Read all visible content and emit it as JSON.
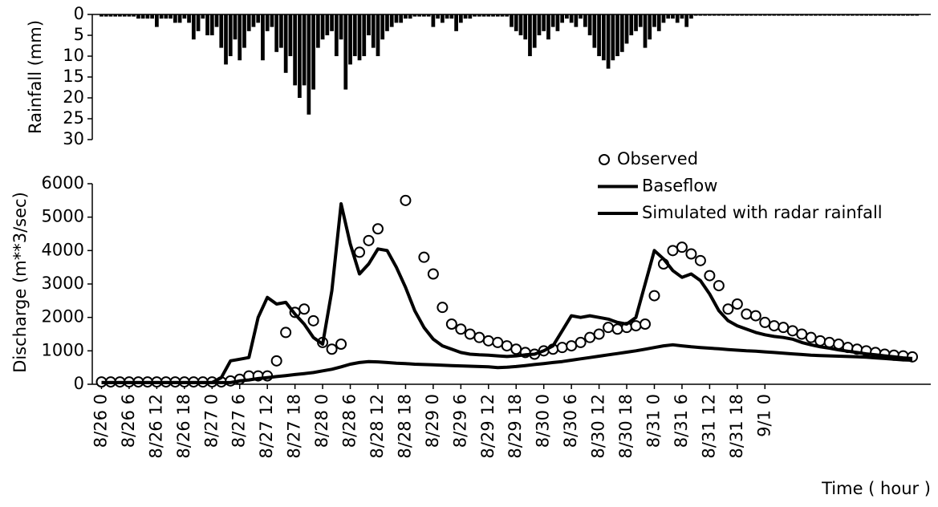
{
  "chart_data": [
    {
      "type": "bar",
      "ylabel": "Rainfall (mm)",
      "color": "#000000",
      "inverted": true,
      "xlim": [
        -2,
        180
      ],
      "ylim": [
        0,
        30
      ],
      "yticks": [
        0,
        5,
        10,
        15,
        20,
        25,
        30
      ],
      "x": [
        0,
        1,
        2,
        3,
        4,
        5,
        6,
        7,
        8,
        9,
        10,
        11,
        12,
        13,
        14,
        15,
        16,
        17,
        18,
        19,
        20,
        21,
        22,
        23,
        24,
        25,
        26,
        27,
        28,
        29,
        30,
        31,
        32,
        33,
        34,
        35,
        36,
        37,
        38,
        39,
        40,
        41,
        42,
        43,
        44,
        45,
        46,
        47,
        48,
        49,
        50,
        51,
        52,
        53,
        54,
        55,
        56,
        57,
        58,
        59,
        60,
        61,
        62,
        63,
        64,
        65,
        66,
        67,
        68,
        69,
        70,
        71,
        72,
        73,
        74,
        75,
        76,
        77,
        78,
        79,
        80,
        81,
        82,
        83,
        84,
        85,
        86,
        87,
        88,
        89,
        90,
        91,
        92,
        93,
        94,
        95,
        96,
        97,
        98,
        99,
        100,
        101,
        102,
        103,
        104,
        105,
        106,
        107,
        108,
        109,
        110,
        111,
        112,
        113,
        114,
        115,
        116,
        117,
        118,
        119,
        120,
        121,
        122,
        123,
        124,
        125,
        126,
        127,
        128,
        129,
        130,
        131,
        132,
        133,
        134,
        135,
        136,
        137,
        138,
        139,
        140,
        141,
        142,
        143,
        144,
        145,
        146,
        147,
        148,
        149,
        150,
        151,
        152,
        153,
        154,
        155,
        156,
        157,
        158,
        159,
        160,
        161,
        162,
        163,
        164,
        165,
        166,
        167,
        168,
        169,
        170,
        171,
        172,
        173,
        174,
        175,
        176,
        177
      ],
      "values": [
        0.5,
        0.5,
        0.5,
        0.5,
        0.5,
        0.5,
        0.5,
        0.5,
        1,
        1,
        1,
        1,
        3,
        1,
        1,
        1,
        2,
        2,
        1,
        2,
        6,
        4,
        1,
        5,
        5,
        3,
        8,
        12,
        10,
        6,
        11,
        8,
        4,
        3,
        2,
        11,
        4,
        3,
        9,
        8,
        14,
        10,
        17,
        20,
        17,
        24,
        18,
        8,
        6,
        5,
        4,
        10,
        6,
        18,
        12,
        10,
        11,
        10,
        5,
        8,
        10,
        6,
        4,
        3,
        2,
        2,
        1,
        1,
        0.5,
        0.5,
        0.5,
        0.5,
        3,
        1,
        2,
        1,
        1,
        4,
        2,
        1,
        1,
        0.5,
        0.5,
        0.5,
        0.5,
        0.5,
        0.5,
        0.5,
        0.5,
        3,
        4,
        5,
        6,
        10,
        8,
        5,
        4,
        6,
        3,
        4,
        2,
        1,
        2,
        3,
        1,
        3,
        5,
        8,
        10,
        11,
        13,
        11,
        10,
        9,
        7,
        5,
        4,
        3,
        8,
        6,
        3,
        4,
        2,
        1,
        1,
        2,
        1,
        3,
        1,
        0.3,
        0.3,
        0.3,
        0.3,
        0.3,
        0.3,
        0.3,
        0.3,
        0.3,
        0.3,
        0.3,
        0.3,
        0.3,
        0.3,
        0.3,
        0.3,
        0.3,
        0.3,
        0.3,
        0.3,
        0.3,
        0.3,
        0.3,
        0.3,
        0.3,
        0.3,
        0.3,
        0.3,
        0.3,
        0.3,
        0.3,
        0.3,
        0.3,
        0.3,
        0.3,
        0.3,
        0.3,
        0.3,
        0.3,
        0.3,
        0.3,
        0.3,
        0.3,
        0.3,
        0.3,
        0.3,
        0.3,
        0.3,
        0.3
      ]
    },
    {
      "type": "line",
      "ylabel": "Discharge (m**3/sec)",
      "xlabel": "Time ( hour )",
      "legend": "upper right",
      "xlim": [
        -2,
        180
      ],
      "ylim": [
        0,
        6000
      ],
      "yticks": [
        0,
        1000,
        2000,
        3000,
        4000,
        5000,
        6000
      ],
      "xticks": [
        {
          "value": 0,
          "label": "8/26 0"
        },
        {
          "value": 6,
          "label": "8/26 6"
        },
        {
          "value": 12,
          "label": "8/26 12"
        },
        {
          "value": 18,
          "label": "8/26 18"
        },
        {
          "value": 24,
          "label": "8/27 0"
        },
        {
          "value": 30,
          "label": "8/27 6"
        },
        {
          "value": 36,
          "label": "8/27 12"
        },
        {
          "value": 42,
          "label": "8/27 18"
        },
        {
          "value": 48,
          "label": "8/28 0"
        },
        {
          "value": 54,
          "label": "8/28 6"
        },
        {
          "value": 60,
          "label": "8/28 12"
        },
        {
          "value": 66,
          "label": "8/28 18"
        },
        {
          "value": 72,
          "label": "8/29 0"
        },
        {
          "value": 78,
          "label": "8/29 6"
        },
        {
          "value": 84,
          "label": "8/29 12"
        },
        {
          "value": 90,
          "label": "8/29 18"
        },
        {
          "value": 96,
          "label": "8/30 0"
        },
        {
          "value": 102,
          "label": "8/30 6"
        },
        {
          "value": 108,
          "label": "8/30 12"
        },
        {
          "value": 114,
          "label": "8/30 18"
        },
        {
          "value": 120,
          "label": "8/31 0"
        },
        {
          "value": 126,
          "label": "8/31 6"
        },
        {
          "value": 132,
          "label": "8/31 12"
        },
        {
          "value": 138,
          "label": "8/31 18"
        },
        {
          "value": 144,
          "label": "9/1   0"
        }
      ],
      "x": [
        0,
        2,
        4,
        6,
        8,
        10,
        12,
        14,
        16,
        18,
        20,
        22,
        24,
        26,
        28,
        30,
        32,
        34,
        36,
        38,
        40,
        42,
        44,
        46,
        48,
        50,
        52,
        54,
        56,
        58,
        60,
        62,
        64,
        66,
        68,
        70,
        72,
        74,
        76,
        78,
        80,
        82,
        84,
        86,
        88,
        90,
        92,
        94,
        96,
        98,
        100,
        102,
        104,
        106,
        108,
        110,
        112,
        114,
        116,
        118,
        120,
        122,
        124,
        126,
        128,
        130,
        132,
        134,
        136,
        138,
        140,
        142,
        144,
        146,
        148,
        150,
        152,
        154,
        156,
        158,
        160,
        162,
        164,
        166,
        168,
        170,
        172,
        174,
        176
      ],
      "series": [
        {
          "name": "Observed",
          "color": "#000000",
          "mode": "markers",
          "values": [
            70,
            70,
            70,
            70,
            70,
            70,
            70,
            70,
            70,
            70,
            70,
            70,
            70,
            70,
            100,
            150,
            250,
            250,
            250,
            700,
            1550,
            2150,
            2250,
            1900,
            1250,
            1050,
            1200,
            null,
            3950,
            4300,
            4650,
            null,
            null,
            5500,
            null,
            3800,
            3300,
            2300,
            1800,
            1650,
            1500,
            1400,
            1300,
            1250,
            1150,
            1050,
            950,
            900,
            1000,
            1050,
            1100,
            1150,
            1250,
            1400,
            1500,
            1700,
            1650,
            1700,
            1750,
            1800,
            2650,
            3600,
            4000,
            4100,
            3900,
            3700,
            3250,
            2950,
            2250,
            2400,
            2100,
            2050,
            1850,
            1750,
            1700,
            1600,
            1500,
            1400,
            1300,
            1250,
            1200,
            1100,
            1050,
            1000,
            950,
            900,
            870,
            850,
            820
          ]
        },
        {
          "name": "Baseflow",
          "color": "#000000",
          "mode": "lines",
          "values": [
            50,
            50,
            50,
            50,
            50,
            50,
            50,
            50,
            50,
            50,
            50,
            50,
            50,
            50,
            50,
            100,
            130,
            170,
            200,
            230,
            260,
            290,
            320,
            350,
            400,
            450,
            520,
            600,
            650,
            680,
            670,
            650,
            630,
            620,
            600,
            590,
            580,
            570,
            560,
            550,
            540,
            530,
            520,
            500,
            510,
            530,
            560,
            590,
            620,
            650,
            680,
            720,
            760,
            800,
            840,
            880,
            920,
            960,
            1000,
            1050,
            1100,
            1150,
            1180,
            1150,
            1120,
            1100,
            1080,
            1060,
            1040,
            1020,
            1000,
            990,
            970,
            950,
            930,
            910,
            890,
            870,
            860,
            850,
            840,
            830,
            820,
            810,
            790,
            770,
            750,
            730,
            720
          ]
        },
        {
          "name": "Simulated with radar rainfall",
          "color": "#000000",
          "mode": "lines",
          "values": [
            50,
            50,
            50,
            50,
            50,
            50,
            50,
            50,
            50,
            50,
            50,
            50,
            50,
            200,
            700,
            750,
            800,
            2000,
            2600,
            2400,
            2450,
            2100,
            1800,
            1400,
            1200,
            2800,
            5400,
            4200,
            3300,
            3600,
            4050,
            4000,
            3500,
            2900,
            2200,
            1700,
            1350,
            1150,
            1050,
            950,
            900,
            880,
            870,
            850,
            830,
            850,
            880,
            900,
            1000,
            1150,
            1600,
            2050,
            2000,
            2050,
            2000,
            1950,
            1850,
            1800,
            2000,
            3000,
            4000,
            3750,
            3400,
            3200,
            3300,
            3100,
            2700,
            2200,
            1900,
            1750,
            1650,
            1550,
            1480,
            1430,
            1400,
            1350,
            1250,
            1180,
            1120,
            1080,
            1030,
            990,
            950,
            910,
            880,
            850,
            820,
            790,
            770
          ]
        }
      ]
    }
  ]
}
